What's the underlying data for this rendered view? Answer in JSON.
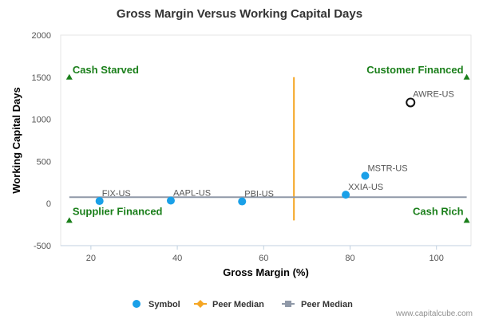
{
  "chart_data": {
    "type": "scatter",
    "title": "Gross Margin Versus Working Capital Days",
    "xlabel": "Gross Margin (%)",
    "ylabel": "Working Capital Days",
    "xlim": [
      13,
      108
    ],
    "ylim": [
      -500,
      2000
    ],
    "x_ticks": [
      20,
      40,
      60,
      80,
      100
    ],
    "y_ticks": [
      -500,
      0,
      500,
      1000,
      1500,
      2000
    ],
    "grid": false,
    "series": [
      {
        "name": "Symbol",
        "color": "#1aa0e8",
        "points": [
          {
            "label": "FIX-US",
            "x": 22.0,
            "y": 30
          },
          {
            "label": "AAPL-US",
            "x": 38.5,
            "y": 35
          },
          {
            "label": "PBI-US",
            "x": 55.0,
            "y": 25
          },
          {
            "label": "XXIA-US",
            "x": 79.0,
            "y": 105
          },
          {
            "label": "MSTR-US",
            "x": 83.5,
            "y": 330
          }
        ]
      }
    ],
    "highlight_point": {
      "label": "AWRE-US",
      "x": 94.0,
      "y": 1200,
      "style": "hollow-black-circle"
    },
    "peer_median_x": {
      "name": "Peer Median",
      "value": 67.0,
      "color": "#f5a623",
      "y_range": [
        -200,
        1500
      ]
    },
    "peer_median_y": {
      "name": "Peer Median",
      "value": 75,
      "color": "#9099a8"
    },
    "quadrant_labels": [
      {
        "text": "Cash Starved",
        "corner": "top-left",
        "x": 15,
        "y": 1500
      },
      {
        "text": "Customer Financed",
        "corner": "top-right",
        "x": 107,
        "y": 1500
      },
      {
        "text": "Supplier Financed",
        "corner": "bottom-left",
        "x": 15,
        "y": -200
      },
      {
        "text": "Cash Rich",
        "corner": "bottom-right",
        "x": 107,
        "y": -200
      }
    ],
    "quadrant_color": "#1a7f1a",
    "legend": {
      "placement": "bottom-center",
      "entries": [
        {
          "label": "Symbol",
          "symbol": "circle",
          "color": "#1aa0e8"
        },
        {
          "label": "Peer Median",
          "symbol": "diamond-line",
          "color": "#f5a623"
        },
        {
          "label": "Peer Median",
          "symbol": "square-line",
          "color": "#9099a8"
        }
      ]
    }
  },
  "credit": "www.capitalcube.com"
}
